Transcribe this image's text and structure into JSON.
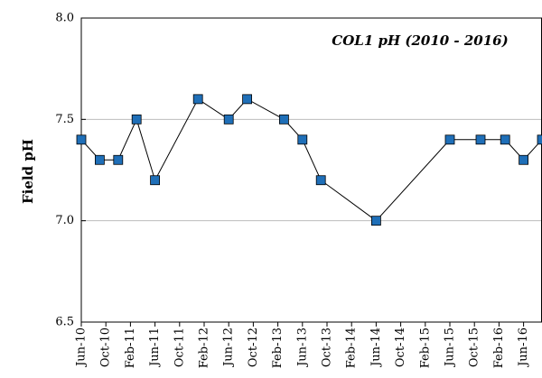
{
  "chart_data": {
    "type": "line",
    "title": "COL1 pH (2010 - 2016)",
    "y_label": "Field pH",
    "x": [
      "2010-06",
      "2010-09",
      "2010-12",
      "2011-03",
      "2011-06",
      "2012-01",
      "2012-06",
      "2012-09",
      "2013-03",
      "2013-06",
      "2013-09",
      "2014-06",
      "2015-06",
      "2015-11",
      "2016-03",
      "2016-06",
      "2016-09"
    ],
    "series": [
      {
        "name": "COL1",
        "color": "#1f6fb8",
        "values": [
          7.4,
          7.3,
          7.3,
          7.5,
          7.2,
          7.6,
          7.5,
          7.6,
          7.5,
          7.4,
          7.2,
          7.0,
          7.4,
          7.4,
          7.4,
          7.3,
          7.4
        ]
      }
    ],
    "xlim": [
      "2010-06",
      "2016-09"
    ],
    "xticks": [
      {
        "value": "2010-06",
        "label": "Jun-10"
      },
      {
        "value": "2010-10",
        "label": "Oct-10"
      },
      {
        "value": "2011-02",
        "label": "Feb-11"
      },
      {
        "value": "2011-06",
        "label": "Jun-11"
      },
      {
        "value": "2011-10",
        "label": "Oct-11"
      },
      {
        "value": "2012-02",
        "label": "Feb-12"
      },
      {
        "value": "2012-06",
        "label": "Jun-12"
      },
      {
        "value": "2012-10",
        "label": "Oct-12"
      },
      {
        "value": "2013-02",
        "label": "Feb-13"
      },
      {
        "value": "2013-06",
        "label": "Jun-13"
      },
      {
        "value": "2013-10",
        "label": "Oct-13"
      },
      {
        "value": "2014-02",
        "label": "Feb-14"
      },
      {
        "value": "2014-06",
        "label": "Jun-14"
      },
      {
        "value": "2014-10",
        "label": "Oct-14"
      },
      {
        "value": "2015-02",
        "label": "Feb-15"
      },
      {
        "value": "2015-06",
        "label": "Jun-15"
      },
      {
        "value": "2015-10",
        "label": "Oct-15"
      },
      {
        "value": "2016-02",
        "label": "Feb-16"
      },
      {
        "value": "2016-06",
        "label": "Jun-16"
      }
    ],
    "ylim": [
      6.5,
      8.0
    ],
    "yticks": [
      {
        "value": 6.5,
        "label": "6.5"
      },
      {
        "value": 7.0,
        "label": "7.0"
      },
      {
        "value": 7.5,
        "label": "7.5"
      },
      {
        "value": 8.0,
        "label": "8.0"
      }
    ],
    "grid": true
  }
}
